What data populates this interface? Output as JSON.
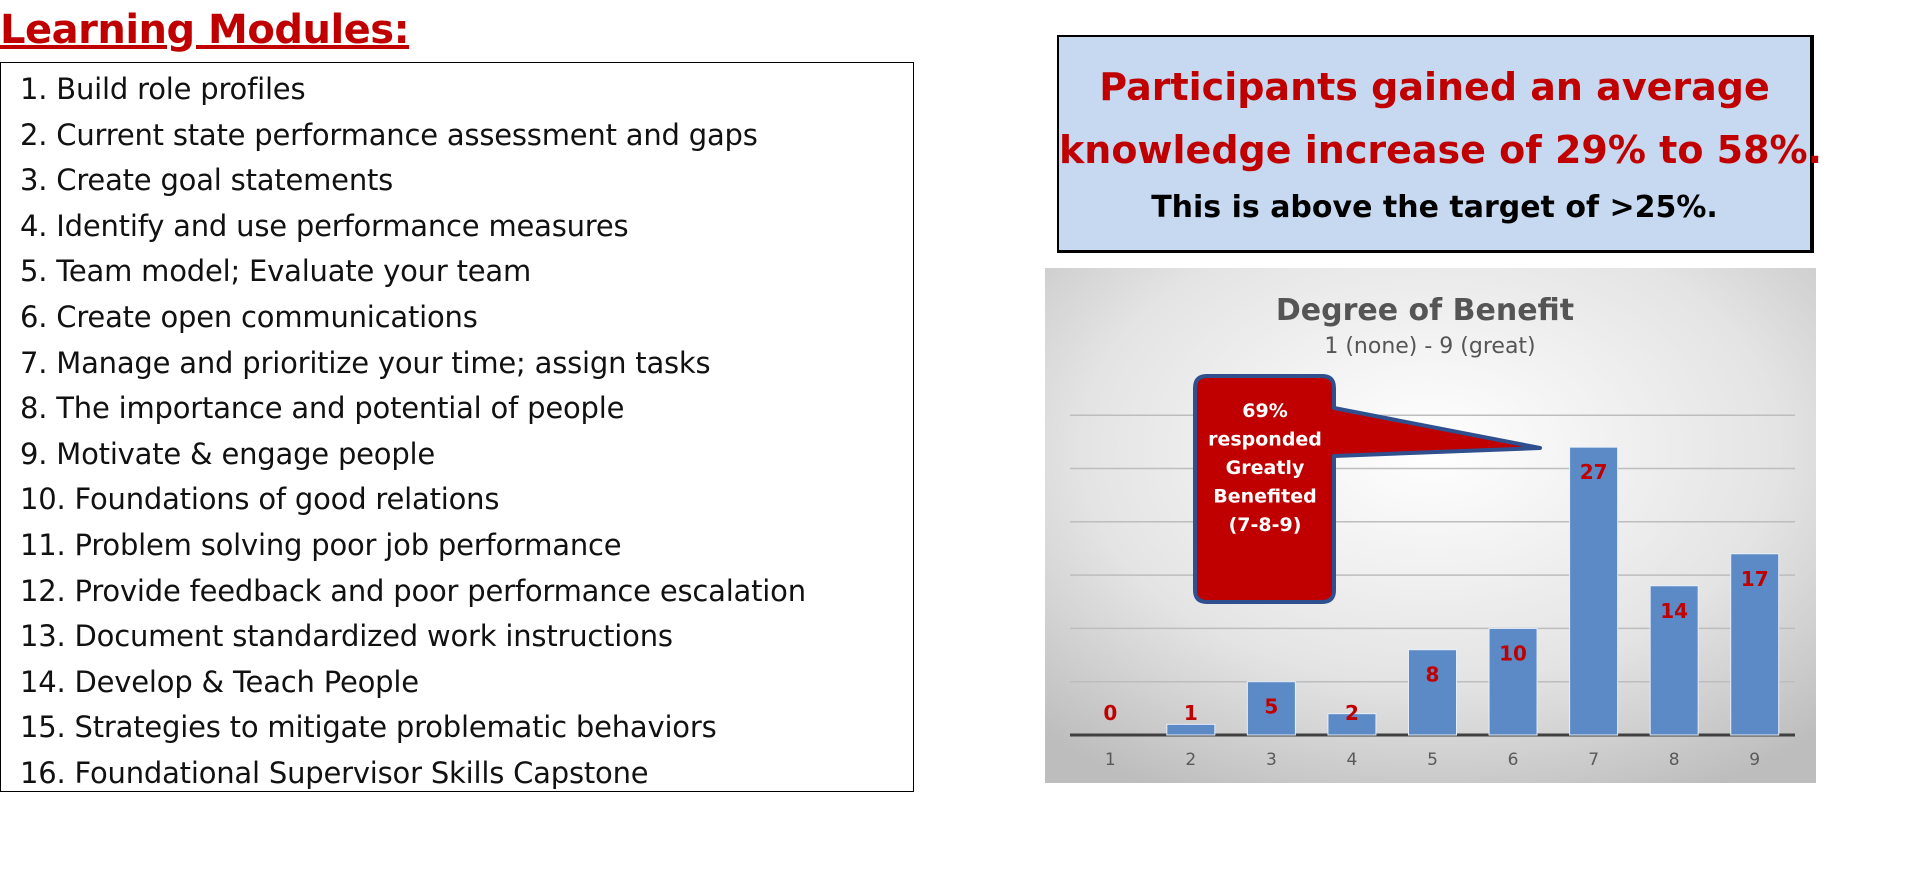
{
  "title": "Learning Modules:",
  "modules": [
    "1. Build role profiles",
    "2. Current state performance assessment and gaps",
    "3. Create goal statements",
    "4. Identify and use performance measures",
    "5. Team model; Evaluate your team",
    "6. Create open communications",
    "7. Manage and prioritize your time; assign tasks",
    "8. The importance and potential of people",
    "9. Motivate & engage people",
    "10. Foundations of good relations",
    "11. Problem solving poor job performance",
    "12. Provide feedback and poor performance escalation",
    "13. Document standardized work instructions",
    "14. Develop & Teach People",
    "15. Strategies to mitigate problematic behaviors",
    "16. Foundational Supervisor Skills Capstone"
  ],
  "highlight": {
    "line1": "Participants gained an average",
    "line2": "knowledge increase of 29% to 58%.",
    "line3": "This is above the target of >25%."
  },
  "chart_data": {
    "type": "bar",
    "title": "Degree of Benefit",
    "subtitle": "1 (none) - 9 (great)",
    "categories": [
      "1",
      "2",
      "3",
      "4",
      "5",
      "6",
      "7",
      "8",
      "9"
    ],
    "values": [
      0,
      1,
      5,
      2,
      8,
      10,
      27,
      14,
      17
    ],
    "ylim": [
      0,
      30
    ],
    "grid": true,
    "annotation": [
      "69%",
      "responded",
      "Greatly",
      "Benefited",
      "(7-8-9)"
    ],
    "colors": {
      "bar": "#5b8ac6",
      "label": "#c00000",
      "callout": "#c00000",
      "callout_border": "#2f4f8f"
    }
  }
}
